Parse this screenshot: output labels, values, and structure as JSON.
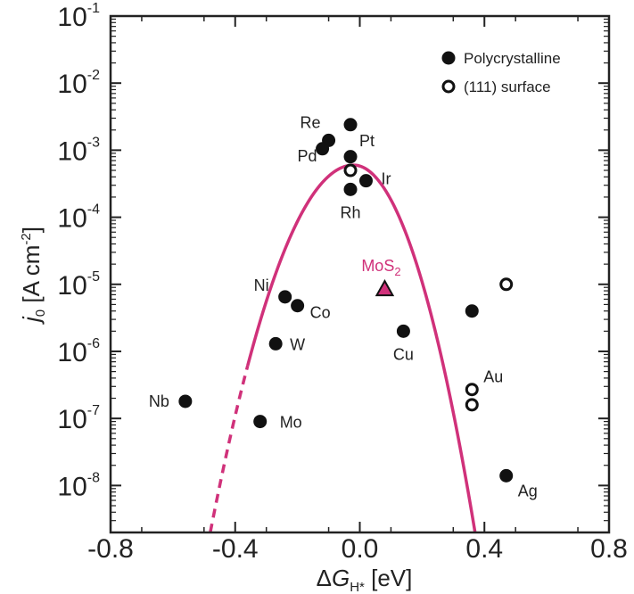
{
  "chart_data": {
    "type": "scatter",
    "title": "",
    "xlabel": {
      "prefix": "Δ",
      "main": "G",
      "sub": "H*",
      "unit": " [eV]"
    },
    "ylabel": {
      "main": "j",
      "sub": "0",
      "unit": " [A cm",
      "exp": "-2",
      "close": "]"
    },
    "xlim": [
      -0.8,
      0.8
    ],
    "ylim_log10": [
      -8.7,
      -1
    ],
    "y_scale": "log",
    "grid": false,
    "legend_position": "top-right",
    "x_ticks": [
      "-0.8",
      "-0.4",
      "0.0",
      "0.4",
      "0.8"
    ],
    "x_tick_values": [
      -0.8,
      -0.4,
      0.0,
      0.4,
      0.8
    ],
    "y_ticks": [
      {
        "exp10": -1,
        "base": "10",
        "exp": "-1"
      },
      {
        "exp10": -2,
        "base": "10",
        "exp": "-2"
      },
      {
        "exp10": -3,
        "base": "10",
        "exp": "-3"
      },
      {
        "exp10": -4,
        "base": "10",
        "exp": "-4"
      },
      {
        "exp10": -5,
        "base": "10",
        "exp": "-5"
      },
      {
        "exp10": -6,
        "base": "10",
        "exp": "-6"
      },
      {
        "exp10": -7,
        "base": "10",
        "exp": "-7"
      },
      {
        "exp10": -8,
        "base": "10",
        "exp": "-8"
      }
    ],
    "legend": [
      {
        "label": "Polycrystalline",
        "marker": "filled-circle"
      },
      {
        "label": "(111) surface",
        "marker": "open-circle"
      }
    ],
    "series": [
      {
        "name": "Polycrystalline",
        "marker": "filled-circle",
        "points": [
          {
            "x": -0.56,
            "y": 1.8e-07,
            "label": "Nb"
          },
          {
            "x": -0.32,
            "y": 9e-08,
            "label": "Mo"
          },
          {
            "x": -0.27,
            "y": 1.3e-06,
            "label": "W"
          },
          {
            "x": -0.24,
            "y": 6.5e-06,
            "label": "Ni"
          },
          {
            "x": -0.2,
            "y": 4.8e-06,
            "label": "Co"
          },
          {
            "x": -0.1,
            "y": 0.0014,
            "label": "Re"
          },
          {
            "x": -0.12,
            "y": 0.00105,
            "label": "Pd"
          },
          {
            "x": -0.03,
            "y": 0.0024,
            "label": "Pt"
          },
          {
            "x": -0.03,
            "y": 0.0008,
            "label": ""
          },
          {
            "x": -0.03,
            "y": 0.00026,
            "label": "Rh"
          },
          {
            "x": 0.02,
            "y": 0.00035,
            "label": "Ir"
          },
          {
            "x": 0.14,
            "y": 2e-06,
            "label": "Cu"
          },
          {
            "x": 0.36,
            "y": 4e-06,
            "label": ""
          },
          {
            "x": 0.47,
            "y": 1.4e-08,
            "label": "Ag"
          }
        ]
      },
      {
        "name": "(111) surface",
        "marker": "open-circle",
        "points": [
          {
            "x": -0.03,
            "y": 0.0005,
            "label": ""
          },
          {
            "x": 0.47,
            "y": 1e-05,
            "label": ""
          },
          {
            "x": 0.36,
            "y": 2.7e-07,
            "label": "Au"
          },
          {
            "x": 0.36,
            "y": 1.6e-07,
            "label": ""
          }
        ]
      }
    ],
    "highlight": {
      "x": 0.08,
      "y": 8.5e-06,
      "label": "MoS",
      "sub": "2",
      "marker": "triangle",
      "color": "#d0317a"
    },
    "volcano_curve": {
      "color": "#d0317a",
      "peak_x": -0.02,
      "peak_y": 0.0006,
      "left_zero_x": -0.48,
      "right_zero_x": 0.37,
      "dashed_below_x": -0.36
    },
    "colors": {
      "point": "#111111",
      "curve": "#d0317a",
      "axis": "#222222"
    },
    "point_labels": [
      {
        "text": "Nb",
        "anchor": "end"
      },
      {
        "text": "Mo",
        "anchor": "start"
      },
      {
        "text": "W",
        "anchor": "start"
      },
      {
        "text": "Ni",
        "anchor": "end"
      },
      {
        "text": "Co",
        "anchor": "start"
      },
      {
        "text": "Re",
        "anchor": "end"
      },
      {
        "text": "Pd",
        "anchor": "end"
      },
      {
        "text": "Pt",
        "anchor": "start"
      },
      {
        "text": "Rh",
        "anchor": "middle"
      },
      {
        "text": "Ir",
        "anchor": "start"
      },
      {
        "text": "Cu",
        "anchor": "middle"
      },
      {
        "text": "Au",
        "anchor": "start"
      },
      {
        "text": "Ag",
        "anchor": "start"
      }
    ]
  }
}
